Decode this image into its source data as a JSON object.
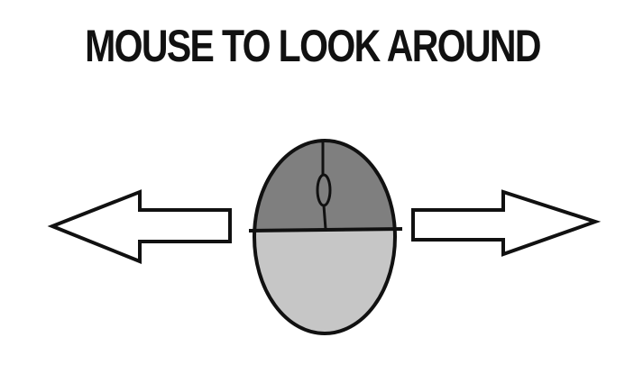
{
  "title": "MOUSE TO LOOK AROUND",
  "colors": {
    "background": "#ffffff",
    "outline": "#111111",
    "mouse_top": "#7f7f7f",
    "mouse_bottom": "#c6c6c6",
    "arrow_fill": "#ffffff"
  },
  "icons": {
    "left": "arrow-left-icon",
    "center": "mouse-icon",
    "right": "arrow-right-icon"
  }
}
